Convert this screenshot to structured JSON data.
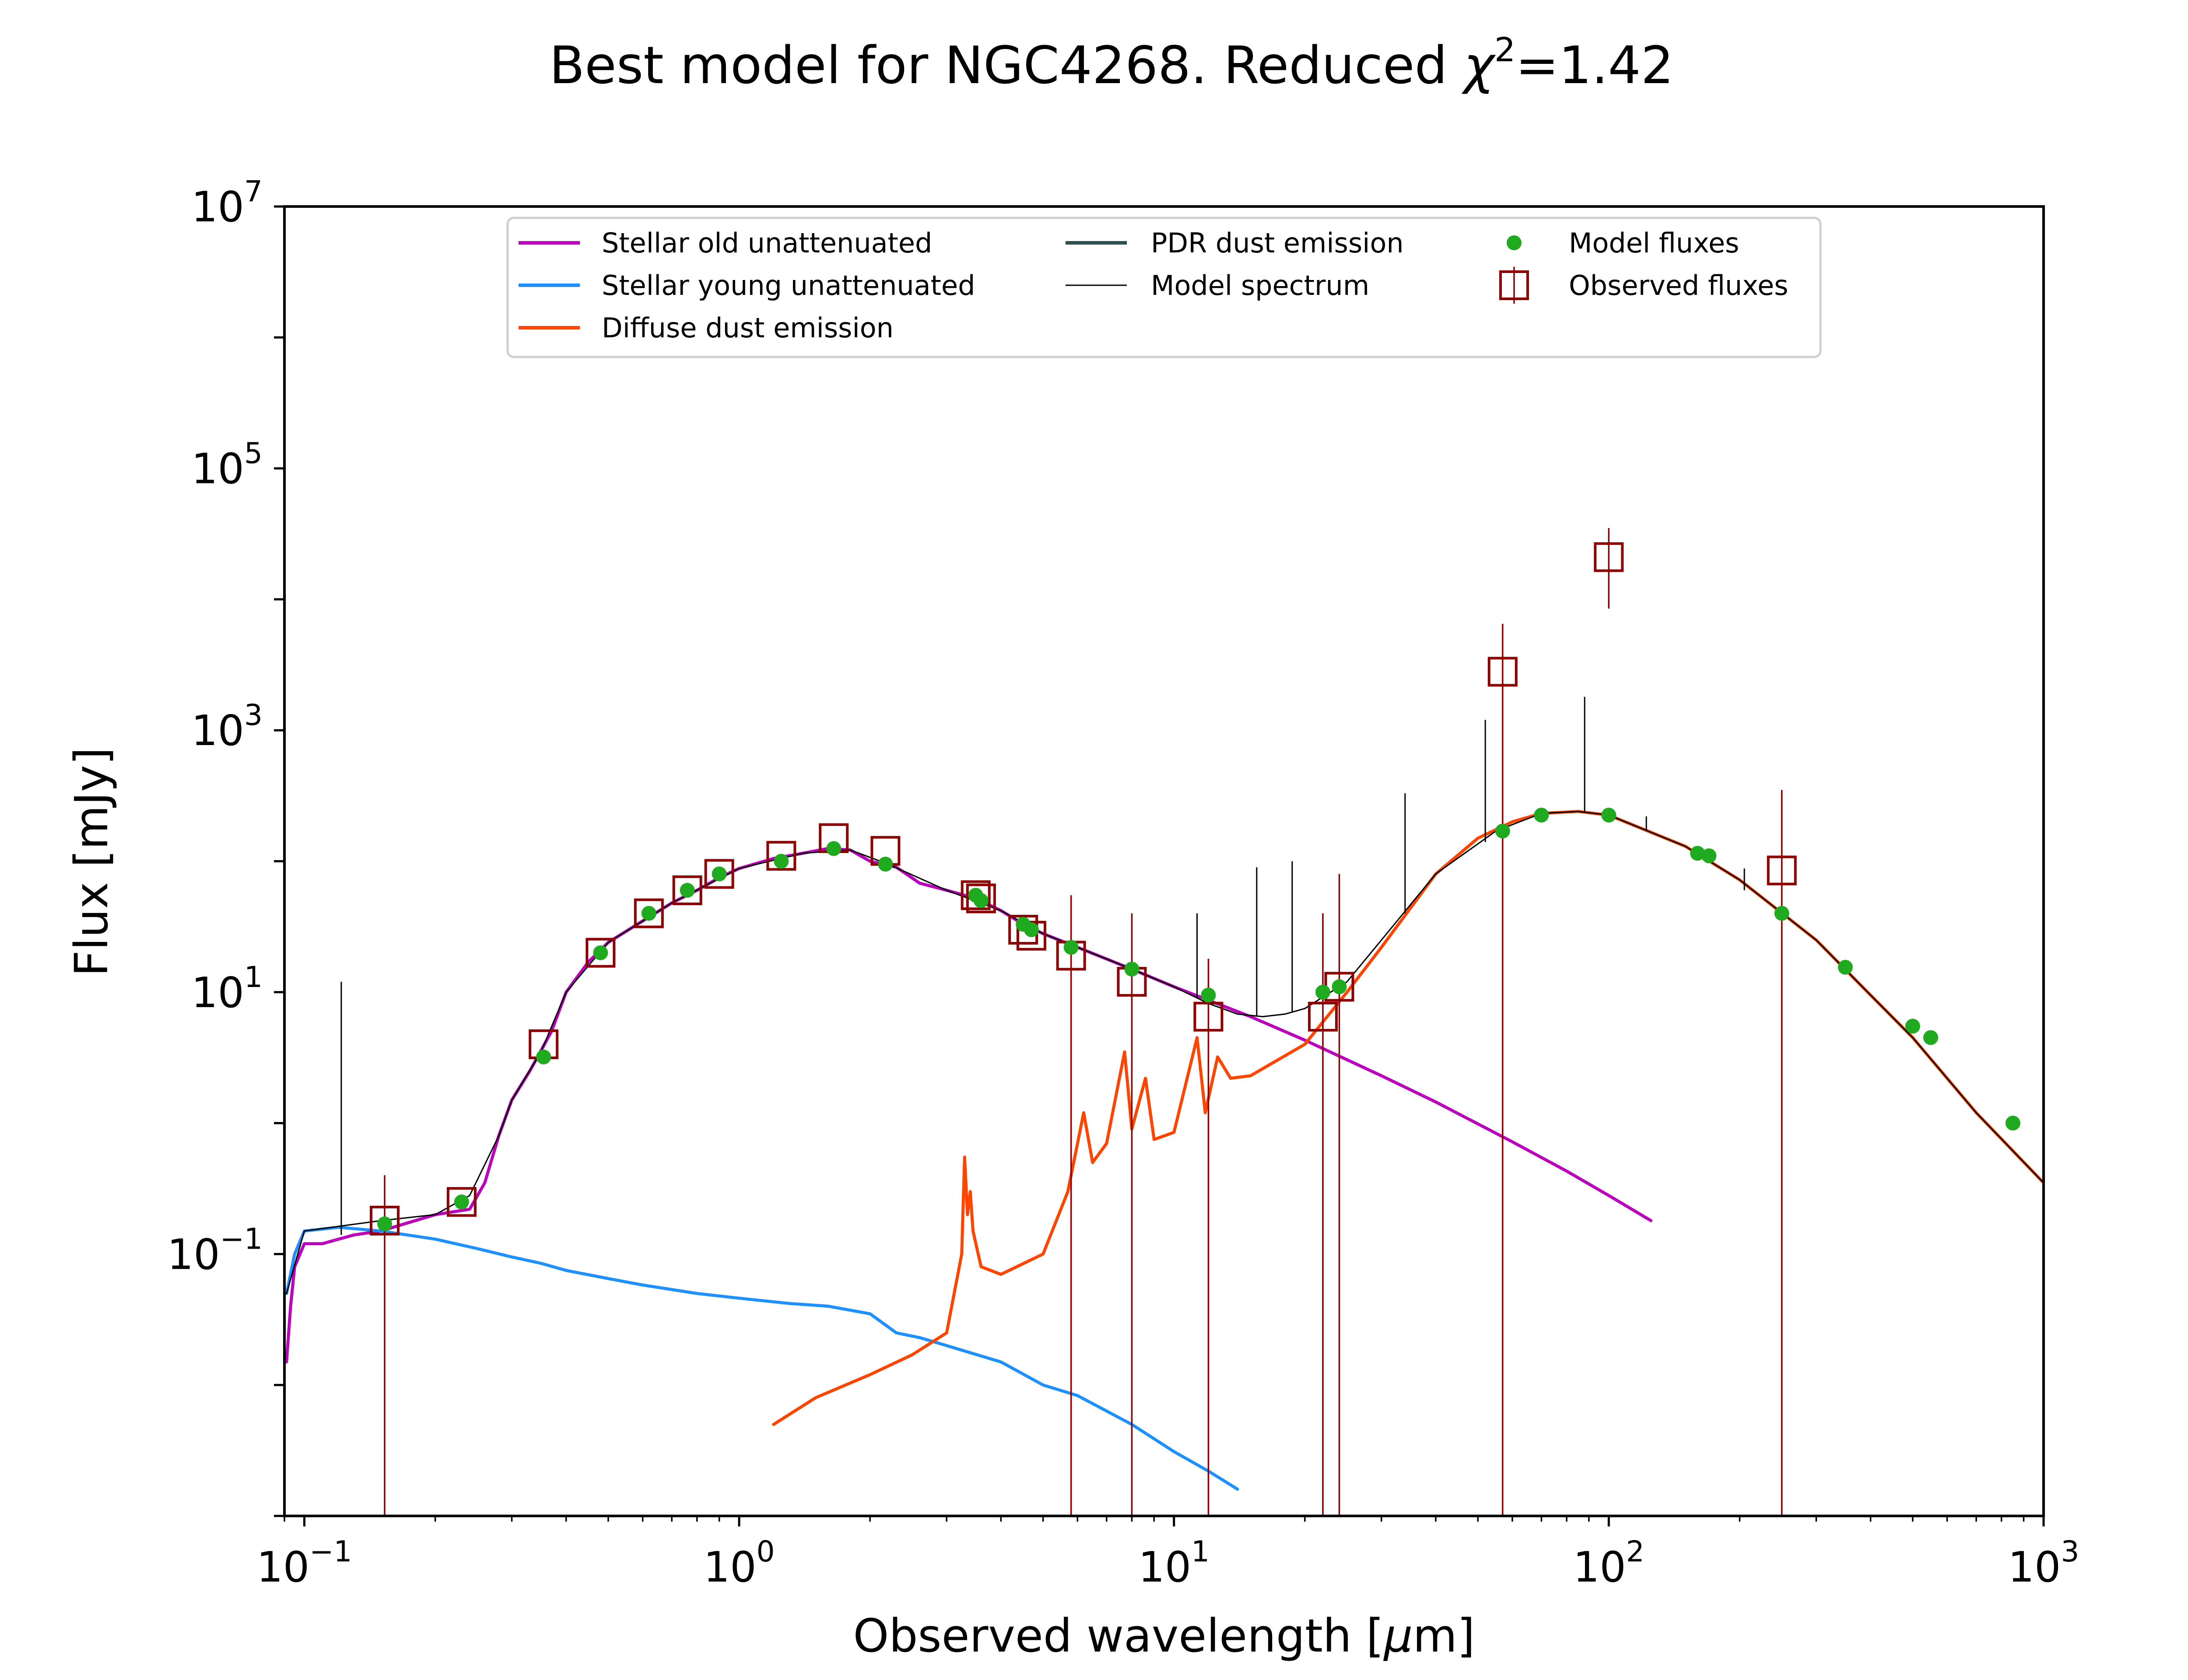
{
  "chart_data": {
    "type": "line",
    "title_main": "Best model for NGC4268. Reduced ",
    "title_chi": "χ",
    "title_sup": "2",
    "title_tail": "=1.42",
    "xlabel_main": "Observed wavelength [",
    "xlabel_mu": "μ",
    "xlabel_tail": "m]",
    "ylabel": "Flux [mJy]",
    "xscale": "log",
    "yscale": "log",
    "xlim": [
      0.09,
      1000
    ],
    "ylim": [
      0.001,
      10000000
    ],
    "legend_placement": "upper-center",
    "grid": false,
    "x_ticks": [
      {
        "base": "10",
        "exp": "−1",
        "value": 0.1
      },
      {
        "base": "10",
        "exp": "0",
        "value": 1
      },
      {
        "base": "10",
        "exp": "1",
        "value": 10
      },
      {
        "base": "10",
        "exp": "2",
        "value": 100
      },
      {
        "base": "10",
        "exp": "3",
        "value": 1000
      }
    ],
    "y_ticks": [
      {
        "base": "10",
        "exp": "−1",
        "value": 0.1
      },
      {
        "base": "10",
        "exp": "1",
        "value": 10
      },
      {
        "base": "10",
        "exp": "3",
        "value": 1000
      },
      {
        "base": "10",
        "exp": "5",
        "value": 100000
      },
      {
        "base": "10",
        "exp": "7",
        "value": 10000000
      }
    ],
    "legend": [
      {
        "label": "Stellar old unattenuated",
        "kind": "line",
        "color": "#bb00bb"
      },
      {
        "label": "Stellar young unattenuated",
        "kind": "line",
        "color": "#1e90ff"
      },
      {
        "label": "Diffuse dust emission",
        "kind": "line",
        "color": "#ff4500"
      },
      {
        "label": "PDR dust emission",
        "kind": "line",
        "color": "#2f4f4f"
      },
      {
        "label": "Model spectrum",
        "kind": "thinline",
        "color": "#000000"
      },
      {
        "label": "Model fluxes",
        "kind": "dot",
        "color": "#1faa1f"
      },
      {
        "label": "Observed fluxes",
        "kind": "square",
        "color": "#8b0000"
      }
    ],
    "series": [
      {
        "name": "Stellar old unattenuated",
        "color": "#bb00bb",
        "points": [
          [
            0.091,
            0.015
          ],
          [
            0.093,
            0.04
          ],
          [
            0.095,
            0.08
          ],
          [
            0.1,
            0.12
          ],
          [
            0.11,
            0.12
          ],
          [
            0.12,
            0.13
          ],
          [
            0.13,
            0.14
          ],
          [
            0.15,
            0.15
          ],
          [
            0.17,
            0.17
          ],
          [
            0.2,
            0.2
          ],
          [
            0.24,
            0.22
          ],
          [
            0.26,
            0.35
          ],
          [
            0.28,
            0.8
          ],
          [
            0.3,
            1.5
          ],
          [
            0.33,
            2.5
          ],
          [
            0.37,
            5
          ],
          [
            0.4,
            10
          ],
          [
            0.45,
            17
          ],
          [
            0.5,
            24
          ],
          [
            0.6,
            35
          ],
          [
            0.7,
            48
          ],
          [
            0.8,
            60
          ],
          [
            0.9,
            75
          ],
          [
            1.0,
            88
          ],
          [
            1.2,
            105
          ],
          [
            1.4,
            115
          ],
          [
            1.6,
            125
          ],
          [
            1.8,
            122
          ],
          [
            2.0,
            100
          ],
          [
            2.3,
            90
          ],
          [
            2.6,
            68
          ],
          [
            3.0,
            60
          ],
          [
            3.5,
            52
          ],
          [
            4.0,
            42
          ],
          [
            4.5,
            33
          ],
          [
            5.0,
            28
          ],
          [
            6.0,
            22
          ],
          [
            8.0,
            15
          ],
          [
            10,
            11
          ],
          [
            15,
            6.5
          ],
          [
            20,
            4.3
          ],
          [
            30,
            2.3
          ],
          [
            40,
            1.45
          ],
          [
            60,
            0.72
          ],
          [
            80,
            0.43
          ],
          [
            100,
            0.28
          ],
          [
            125,
            0.18
          ]
        ]
      },
      {
        "name": "Stellar young unattenuated",
        "color": "#1e90ff",
        "points": [
          [
            0.091,
            0.05
          ],
          [
            0.095,
            0.1
          ],
          [
            0.1,
            0.15
          ],
          [
            0.12,
            0.16
          ],
          [
            0.15,
            0.15
          ],
          [
            0.2,
            0.13
          ],
          [
            0.25,
            0.11
          ],
          [
            0.3,
            0.095
          ],
          [
            0.35,
            0.085
          ],
          [
            0.4,
            0.075
          ],
          [
            0.5,
            0.065
          ],
          [
            0.6,
            0.058
          ],
          [
            0.8,
            0.05
          ],
          [
            1.0,
            0.046
          ],
          [
            1.3,
            0.042
          ],
          [
            1.6,
            0.04
          ],
          [
            2.0,
            0.035
          ],
          [
            2.3,
            0.025
          ],
          [
            2.6,
            0.023
          ],
          [
            3.0,
            0.02
          ],
          [
            4.0,
            0.015
          ],
          [
            5.0,
            0.01
          ],
          [
            6.0,
            0.0083
          ],
          [
            8.0,
            0.005
          ],
          [
            10,
            0.0031
          ],
          [
            12,
            0.0022
          ],
          [
            14,
            0.0016
          ]
        ]
      },
      {
        "name": "Diffuse dust emission",
        "color": "#ff4500",
        "points": [
          [
            1.2,
            0.005
          ],
          [
            1.5,
            0.008
          ],
          [
            2.0,
            0.012
          ],
          [
            2.5,
            0.017
          ],
          [
            3.0,
            0.025
          ],
          [
            3.25,
            0.1
          ],
          [
            3.3,
            0.55
          ],
          [
            3.35,
            0.2
          ],
          [
            3.4,
            0.3
          ],
          [
            3.45,
            0.15
          ],
          [
            3.6,
            0.08
          ],
          [
            4.0,
            0.07
          ],
          [
            5.0,
            0.1
          ],
          [
            5.7,
            0.3
          ],
          [
            6.2,
            1.2
          ],
          [
            6.5,
            0.5
          ],
          [
            7.0,
            0.7
          ],
          [
            7.7,
            3.5
          ],
          [
            8.0,
            0.9
          ],
          [
            8.6,
            2.2
          ],
          [
            9.0,
            0.75
          ],
          [
            10,
            0.85
          ],
          [
            11.3,
            4.5
          ],
          [
            11.8,
            1.2
          ],
          [
            12.6,
            3.2
          ],
          [
            13.5,
            2.2
          ],
          [
            15,
            2.3
          ],
          [
            20,
            4
          ],
          [
            25,
            10
          ],
          [
            30,
            22
          ],
          [
            40,
            80
          ],
          [
            50,
            150
          ],
          [
            60,
            200
          ],
          [
            70,
            232
          ],
          [
            85,
            240
          ],
          [
            100,
            225
          ],
          [
            150,
            130
          ],
          [
            200,
            72
          ],
          [
            300,
            25
          ],
          [
            400,
            9.5
          ],
          [
            500,
            4.5
          ],
          [
            700,
            1.2
          ],
          [
            1000,
            0.35
          ]
        ]
      },
      {
        "name": "Model spectrum",
        "color": "#000000",
        "points": [
          [
            0.091,
            0.05
          ],
          [
            0.1,
            0.15
          ],
          [
            0.15,
            0.18
          ],
          [
            0.2,
            0.2
          ],
          [
            0.24,
            0.28
          ],
          [
            0.28,
            0.8
          ],
          [
            0.3,
            1.5
          ],
          [
            0.35,
            3.5
          ],
          [
            0.4,
            10
          ],
          [
            0.5,
            24
          ],
          [
            0.7,
            48
          ],
          [
            1.0,
            88
          ],
          [
            1.4,
            115
          ],
          [
            1.8,
            122
          ],
          [
            2.2,
            95
          ],
          [
            3.0,
            60
          ],
          [
            4.0,
            42
          ],
          [
            5.0,
            28
          ],
          [
            6.0,
            22
          ],
          [
            8.0,
            15
          ],
          [
            10,
            11
          ],
          [
            12,
            8.2
          ],
          [
            14,
            6.8
          ],
          [
            16,
            6.5
          ],
          [
            18,
            6.8
          ],
          [
            20,
            7.5
          ],
          [
            25,
            12
          ],
          [
            30,
            25
          ],
          [
            40,
            80
          ],
          [
            55,
            170
          ],
          [
            70,
            232
          ],
          [
            85,
            240
          ],
          [
            100,
            225
          ],
          [
            150,
            130
          ],
          [
            200,
            72
          ],
          [
            300,
            25
          ],
          [
            400,
            9.5
          ],
          [
            500,
            4.5
          ],
          [
            700,
            1.2
          ],
          [
            1000,
            0.35
          ]
        ]
      }
    ],
    "emission_lines": [
      {
        "x": 0.1216,
        "peak": 12,
        "base": 0.14
      },
      {
        "x": 11.3,
        "peak": 40,
        "base": 9
      },
      {
        "x": 15.5,
        "peak": 90,
        "base": 6.5
      },
      {
        "x": 18.7,
        "peak": 100,
        "base": 7
      },
      {
        "x": 34,
        "peak": 330,
        "base": 40
      },
      {
        "x": 52,
        "peak": 1200,
        "base": 140
      },
      {
        "x": 88,
        "peak": 1800,
        "base": 240
      },
      {
        "x": 122,
        "peak": 220,
        "base": 170
      },
      {
        "x": 205,
        "peak": 88,
        "base": 60
      }
    ],
    "model_fluxes": [
      [
        0.153,
        0.17
      ],
      [
        0.23,
        0.25
      ],
      [
        0.355,
        3.2
      ],
      [
        0.48,
        20
      ],
      [
        0.62,
        40
      ],
      [
        0.76,
        60
      ],
      [
        0.9,
        80
      ],
      [
        1.25,
        100
      ],
      [
        1.65,
        125
      ],
      [
        2.17,
        95
      ],
      [
        3.5,
        55
      ],
      [
        3.6,
        50
      ],
      [
        4.5,
        33
      ],
      [
        4.7,
        30
      ],
      [
        5.8,
        22
      ],
      [
        8.0,
        15
      ],
      [
        12,
        9.5
      ],
      [
        22,
        10
      ],
      [
        24,
        11
      ],
      [
        57,
        170
      ],
      [
        70,
        225
      ],
      [
        100,
        225
      ],
      [
        160,
        115
      ],
      [
        170,
        110
      ],
      [
        250,
        40
      ],
      [
        350,
        15.5
      ],
      [
        500,
        5.5
      ],
      [
        550,
        4.5
      ],
      [
        850,
        1.0
      ]
    ],
    "observed_fluxes": [
      {
        "x": 0.153,
        "y": 0.18,
        "err": [
          0.001,
          0.4
        ]
      },
      {
        "x": 0.23,
        "y": 0.25
      },
      {
        "x": 0.355,
        "y": 4.0
      },
      {
        "x": 0.48,
        "y": 20
      },
      {
        "x": 0.62,
        "y": 40
      },
      {
        "x": 0.76,
        "y": 60
      },
      {
        "x": 0.9,
        "y": 80
      },
      {
        "x": 1.25,
        "y": 110
      },
      {
        "x": 1.65,
        "y": 150
      },
      {
        "x": 2.17,
        "y": 120
      },
      {
        "x": 3.5,
        "y": 55
      },
      {
        "x": 3.6,
        "y": 52
      },
      {
        "x": 4.5,
        "y": 30
      },
      {
        "x": 4.7,
        "y": 27
      },
      {
        "x": 5.8,
        "y": 19,
        "err": [
          0.001,
          55
        ]
      },
      {
        "x": 8.0,
        "y": 12,
        "err": [
          0.001,
          40
        ]
      },
      {
        "x": 12,
        "y": 6.5,
        "err": [
          0.001,
          18
        ]
      },
      {
        "x": 22,
        "y": 6.5,
        "err": [
          0.001,
          40
        ]
      },
      {
        "x": 24,
        "y": 11,
        "err": [
          0.001,
          80
        ]
      },
      {
        "x": 57,
        "y": 2800,
        "err": [
          0.001,
          6500
        ]
      },
      {
        "x": 100,
        "y": 21000,
        "err": [
          8500,
          35000
        ]
      },
      {
        "x": 250,
        "y": 85,
        "err": [
          0.001,
          350
        ]
      }
    ]
  }
}
